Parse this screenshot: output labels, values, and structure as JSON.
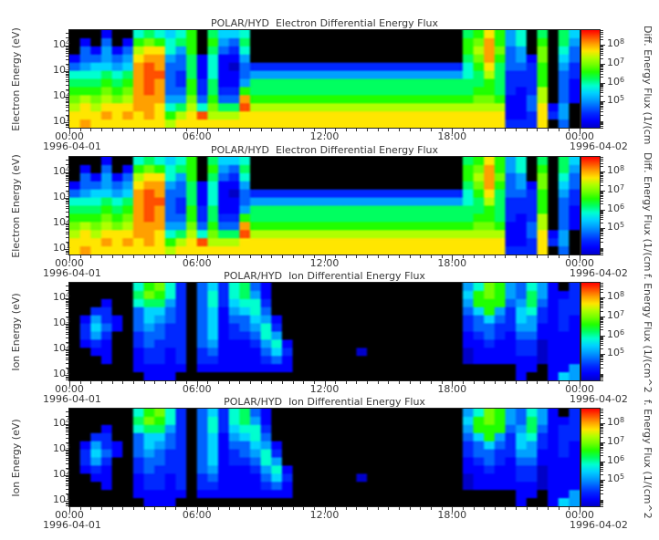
{
  "figure": {
    "background": "#ffffff",
    "text_color": "#383838"
  },
  "chart_data": {
    "type": "heatmap",
    "panels": [
      {
        "title": "POLAR/HYD  Electron Differential Energy Flux",
        "y_label": "Electron Energy (eV)",
        "grid_ref": "electron",
        "colorbar_label": "Diff. Energy Flux (1/(cm"
      },
      {
        "title": "POLAR/HYD  Electron Differential Energy Flux",
        "y_label": "Electron Energy (eV)",
        "grid_ref": "electron",
        "colorbar_label": "Diff. Energy Flux (1/(cm"
      },
      {
        "title": "POLAR/HYD  Ion Differential Energy Flux",
        "y_label": "Ion Energy (eV)",
        "grid_ref": "ion",
        "colorbar_label": "f. Energy Flux (1/(cm^2"
      },
      {
        "title": "POLAR/HYD  Ion Differential Energy Flux",
        "y_label": "Ion Energy (eV)",
        "grid_ref": "ion",
        "colorbar_label": "f. Energy Flux (1/(cm^2"
      }
    ],
    "x_axis": {
      "tick_labels": [
        "00:00",
        "06:00",
        "12:00",
        "18:00",
        "00:00"
      ],
      "tick_hours": [
        0,
        6,
        12,
        18,
        24
      ],
      "minor_tick_minutes": 30,
      "start_date": "1996-04-01",
      "end_date": "1996-04-02"
    },
    "y_axis": {
      "scale": "log",
      "tick_exponents": [
        1,
        2,
        3,
        4
      ],
      "range_log10": [
        0.8,
        4.6
      ]
    },
    "colorbar": {
      "scale": "log",
      "tick_exponents": [
        5,
        6,
        7,
        8
      ],
      "range_log10": [
        3.6,
        8.8
      ],
      "no_data_color": "#000000",
      "colors": [
        "#0000c8",
        "#0000ff",
        "#0028ff",
        "#0064ff",
        "#00a0ff",
        "#00d4ff",
        "#00ffd0",
        "#00ff60",
        "#20ff00",
        "#70ff00",
        "#b0ff00",
        "#ffe600",
        "#ffa000",
        "#ff5000",
        "#ff0000"
      ]
    },
    "grid_encoding": {
      "columns": 48,
      "rows": 12,
      "description": "48 columns = 30-minute bins from 00:00 1996-04-01 to 00:00 1996-04-02; 12 rows top-to-bottom = log-spaced energy bins 10^4.6 eV down to 10^0.8 eV; each hex char: 0 = no data (black), levels 1-15 = log10 differential energy flux of about 4.75 + 0.25*(level-1)"
    },
    "grids": {
      "electron": [
        "00020078767908667000000000000000000008 9c95708086",
        "0204029a978909548000000000000000000009ad95709085",
        "04252 4bcc75908437000000000000000000009bda450a074",
        "244545cdd54827225000000000000000000008ad9452a064",
        "456656ded448272143333333333333333333379c84439053",
        "777878dee438272245555555555555555555578b83339043",
        "888989ded4393822588888888888888888888 88983339042",
        "999a9aded44938339888888888888888888888998323b042",
        "abababddd55a4944d999999999999999999999aa9224b042",
        "bcbcccddc78b7a88ebbbbbbbbbbbbbbbbbbbbbbbb224c250",
        "cccdcdcdc9bcebbbccccccccccccccccccccccccc223c350",
        "cdcccccccbccccccccccccccccccccccccccccccc333c040"
      ],
      "ion": [
        "00000079a730463784200000000000000000057a95475203",
        "0000008a9730473785200000000000000000069a95485223",
        "00020078853047367730000000000000000005999458 4233",
        "00330046643046256740000000000000000004 6953673233",
        "02532046543046244652000000000000000003 4643653232",
        "03642045433046234573000000000000000003 4433552232",
        "0353003443304623347500000000000000000234324 42222",
        "02320034333045222357200000000000000002232233 1222",
        "00220023323034222246300000010000000001222233 1222",
        "00020023323033222234200000000000000001222222 1222",
        "0000002222202222222220000000000000000000002 20225",
        "00000002220000000000000000000000000000000020 0265"
      ]
    }
  }
}
